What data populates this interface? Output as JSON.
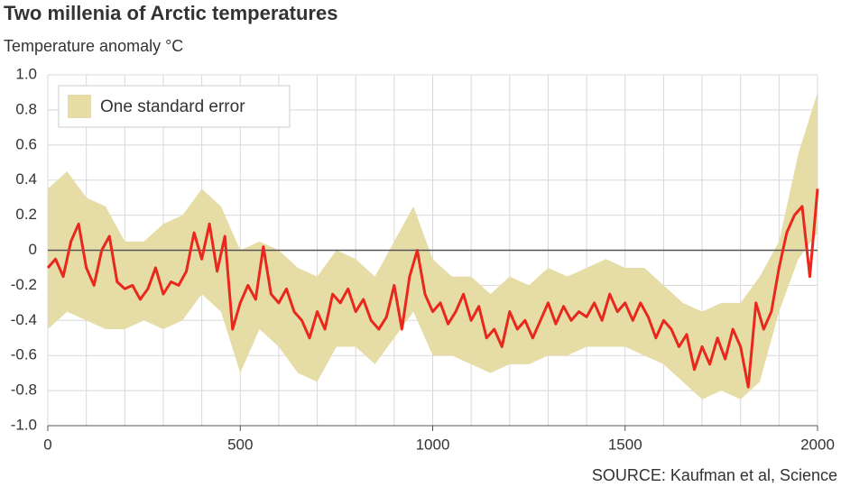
{
  "chart_data": {
    "type": "line",
    "title": "Two millenia of Arctic temperatures",
    "subtitle": "Temperature anomaly °C",
    "source": "SOURCE: Kaufman et al, Science",
    "xlim": [
      0,
      2000
    ],
    "xticks": [
      0,
      500,
      1000,
      1500,
      2000
    ],
    "x_minor_ticks": [
      0,
      100,
      200,
      300,
      400,
      500,
      600,
      700,
      800,
      900,
      1000,
      1100,
      1200,
      1300,
      1400,
      1500,
      1600,
      1700,
      1800,
      1900,
      2000
    ],
    "ylim": [
      -1.0,
      1.0
    ],
    "yticks": [
      {
        "value": -1.0,
        "label": "-1.0"
      },
      {
        "value": -0.8,
        "label": "-0.8"
      },
      {
        "value": -0.6,
        "label": "-0.6"
      },
      {
        "value": -0.4,
        "label": "-0.4"
      },
      {
        "value": -0.2,
        "label": "-0.2"
      },
      0,
      0.2,
      0.4,
      0.6,
      0.8,
      {
        "value": 1.0,
        "label": "1.0"
      }
    ],
    "grid": true,
    "legend_position": "upper-left",
    "band": {
      "name": "One standard error",
      "color": "#e6dca6",
      "x": [
        0,
        50,
        100,
        150,
        200,
        250,
        300,
        350,
        400,
        450,
        500,
        550,
        600,
        650,
        700,
        750,
        800,
        850,
        900,
        950,
        1000,
        1050,
        1100,
        1150,
        1200,
        1250,
        1300,
        1350,
        1400,
        1450,
        1500,
        1550,
        1600,
        1650,
        1700,
        1750,
        1800,
        1850,
        1900,
        1950,
        2000
      ],
      "lower": [
        -0.45,
        -0.35,
        -0.4,
        -0.45,
        -0.45,
        -0.4,
        -0.45,
        -0.4,
        -0.25,
        -0.35,
        -0.7,
        -0.45,
        -0.55,
        -0.7,
        -0.75,
        -0.55,
        -0.55,
        -0.65,
        -0.5,
        -0.35,
        -0.6,
        -0.6,
        -0.65,
        -0.7,
        -0.65,
        -0.65,
        -0.6,
        -0.6,
        -0.55,
        -0.55,
        -0.55,
        -0.6,
        -0.65,
        -0.75,
        -0.85,
        -0.8,
        -0.85,
        -0.75,
        -0.35,
        -0.05,
        0.1
      ],
      "upper": [
        0.35,
        0.45,
        0.3,
        0.25,
        0.05,
        0.05,
        0.15,
        0.2,
        0.35,
        0.25,
        0.0,
        0.05,
        0.0,
        -0.1,
        -0.15,
        0.0,
        -0.05,
        -0.15,
        0.05,
        0.25,
        -0.05,
        -0.15,
        -0.15,
        -0.25,
        -0.15,
        -0.2,
        -0.1,
        -0.15,
        -0.1,
        -0.05,
        -0.1,
        -0.1,
        -0.2,
        -0.3,
        -0.35,
        -0.3,
        -0.3,
        -0.15,
        0.05,
        0.55,
        0.9
      ]
    },
    "series": [
      {
        "color": "#e8281c",
        "x": [
          0,
          20,
          40,
          60,
          80,
          100,
          120,
          140,
          160,
          180,
          200,
          220,
          240,
          260,
          280,
          300,
          320,
          340,
          360,
          380,
          400,
          420,
          440,
          460,
          480,
          500,
          520,
          540,
          560,
          580,
          600,
          620,
          640,
          660,
          680,
          700,
          720,
          740,
          760,
          780,
          800,
          820,
          840,
          860,
          880,
          900,
          920,
          940,
          960,
          980,
          1000,
          1020,
          1040,
          1060,
          1080,
          1100,
          1120,
          1140,
          1160,
          1180,
          1200,
          1220,
          1240,
          1260,
          1280,
          1300,
          1320,
          1340,
          1360,
          1380,
          1400,
          1420,
          1440,
          1460,
          1480,
          1500,
          1520,
          1540,
          1560,
          1580,
          1600,
          1620,
          1640,
          1660,
          1680,
          1700,
          1720,
          1740,
          1760,
          1780,
          1800,
          1820,
          1840,
          1860,
          1880,
          1900,
          1920,
          1940,
          1960,
          1980,
          2000
        ],
        "values": [
          -0.1,
          -0.05,
          -0.15,
          0.05,
          0.15,
          -0.1,
          -0.2,
          0.0,
          0.08,
          -0.18,
          -0.22,
          -0.2,
          -0.28,
          -0.22,
          -0.1,
          -0.25,
          -0.18,
          -0.2,
          -0.12,
          0.1,
          -0.05,
          0.15,
          -0.12,
          0.08,
          -0.45,
          -0.3,
          -0.2,
          -0.28,
          0.02,
          -0.25,
          -0.3,
          -0.22,
          -0.35,
          -0.4,
          -0.5,
          -0.35,
          -0.45,
          -0.25,
          -0.3,
          -0.22,
          -0.35,
          -0.28,
          -0.4,
          -0.45,
          -0.38,
          -0.2,
          -0.45,
          -0.15,
          0.0,
          -0.25,
          -0.35,
          -0.3,
          -0.42,
          -0.35,
          -0.25,
          -0.4,
          -0.32,
          -0.5,
          -0.45,
          -0.55,
          -0.35,
          -0.45,
          -0.4,
          -0.5,
          -0.4,
          -0.3,
          -0.42,
          -0.32,
          -0.4,
          -0.35,
          -0.38,
          -0.3,
          -0.4,
          -0.25,
          -0.35,
          -0.3,
          -0.4,
          -0.3,
          -0.38,
          -0.5,
          -0.4,
          -0.45,
          -0.55,
          -0.48,
          -0.68,
          -0.55,
          -0.65,
          -0.5,
          -0.62,
          -0.45,
          -0.55,
          -0.78,
          -0.3,
          -0.45,
          -0.35,
          -0.1,
          0.1,
          0.2,
          0.25,
          -0.15,
          0.35
        ]
      }
    ]
  }
}
